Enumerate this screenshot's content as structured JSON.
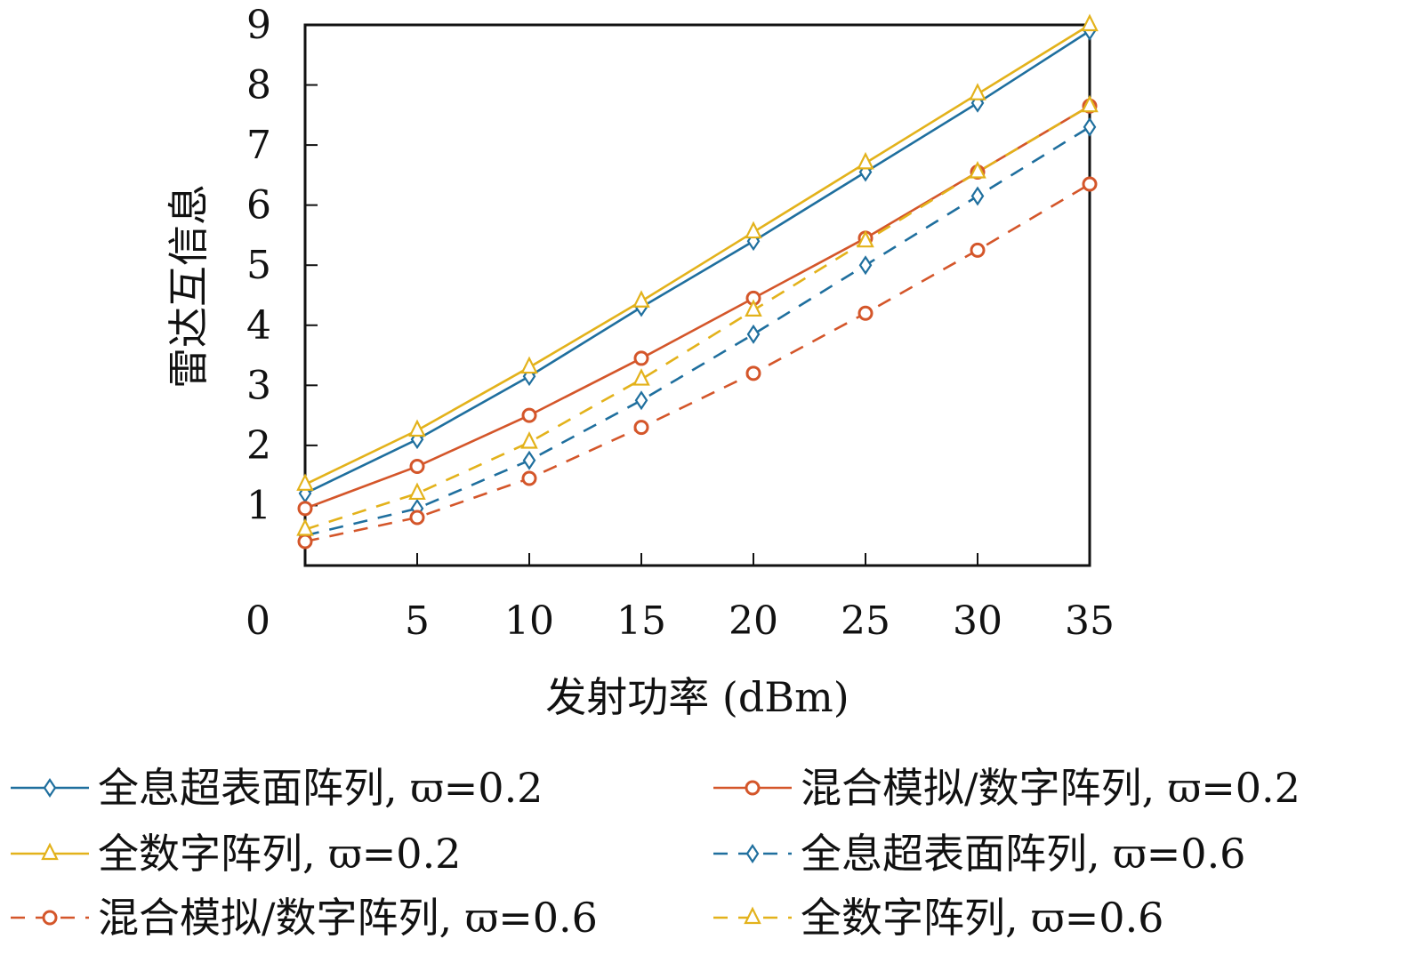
{
  "chart_data": {
    "type": "line",
    "title": "",
    "xlabel": "发射功率 (dBm)",
    "ylabel": "雷达互信息",
    "x_ticks": [
      "0",
      "5",
      "10",
      "15",
      "20",
      "25",
      "30",
      "35"
    ],
    "y_ticks": [
      "1",
      "2",
      "3",
      "4",
      "5",
      "6",
      "7",
      "8",
      "9"
    ],
    "xlim": [
      -7,
      35
    ],
    "ylim": [
      0,
      9
    ],
    "x": [
      0,
      5,
      10,
      15,
      20,
      25,
      30,
      35
    ],
    "grid": false,
    "legend_position": "bottom",
    "series": [
      {
        "name": "全息超表面阵列, ϖ=0.2",
        "color": "#1f6f9e",
        "dash": "solid",
        "marker": "diamond",
        "values": [
          1.2,
          2.1,
          3.15,
          4.3,
          5.4,
          6.55,
          7.7,
          8.9
        ]
      },
      {
        "name": "混合模拟/数字阵列, ϖ=0.2",
        "color": "#d4562a",
        "dash": "solid",
        "marker": "circle",
        "values": [
          0.95,
          1.65,
          2.5,
          3.45,
          4.45,
          5.45,
          6.55,
          7.65
        ]
      },
      {
        "name": "全数字阵列, ϖ=0.2",
        "color": "#e3b21b",
        "dash": "solid",
        "marker": "triangle",
        "values": [
          1.35,
          2.25,
          3.3,
          4.4,
          5.55,
          6.7,
          7.85,
          9.0
        ]
      },
      {
        "name": "全息超表面阵列, ϖ=0.6",
        "color": "#1f6f9e",
        "dash": "dashed",
        "marker": "diamond",
        "values": [
          0.5,
          0.95,
          1.75,
          2.75,
          3.85,
          5.0,
          6.15,
          7.3
        ]
      },
      {
        "name": "混合模拟/数字阵列, ϖ=0.6",
        "color": "#d4562a",
        "dash": "dashed",
        "marker": "circle",
        "values": [
          0.4,
          0.8,
          1.45,
          2.3,
          3.2,
          4.2,
          5.25,
          6.35
        ]
      },
      {
        "name": "全数字阵列, ϖ=0.6",
        "color": "#e3b21b",
        "dash": "dashed",
        "marker": "triangle",
        "values": [
          0.6,
          1.2,
          2.05,
          3.1,
          4.25,
          5.4,
          6.55,
          7.65
        ]
      }
    ]
  }
}
